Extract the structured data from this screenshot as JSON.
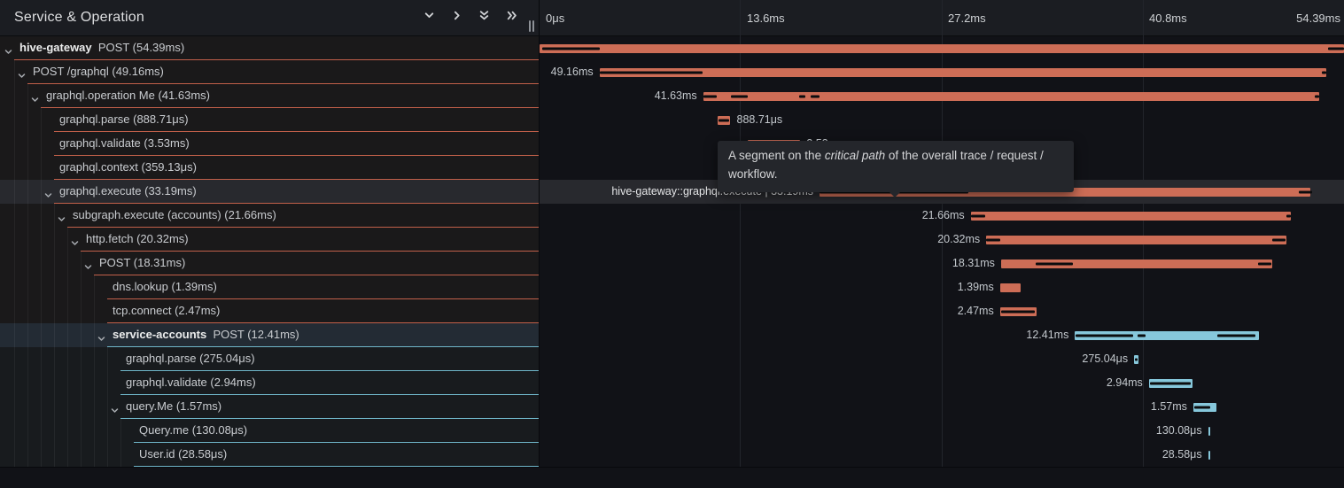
{
  "header": {
    "title": "Service & Operation",
    "buttons": [
      {
        "name": "collapse-one-button",
        "icon": "chevron-down-icon"
      },
      {
        "name": "expand-one-button",
        "icon": "chevron-right-icon"
      },
      {
        "name": "collapse-all-button",
        "icon": "double-chevron-down-icon"
      },
      {
        "name": "expand-all-button",
        "icon": "double-chevron-right-icon"
      }
    ]
  },
  "timeline": {
    "total_ms": 54.39,
    "ticks": [
      {
        "label": "0μs",
        "pos_pct": 0,
        "align": "left"
      },
      {
        "label": "13.6ms",
        "pos_pct": 25,
        "align": "left"
      },
      {
        "label": "27.2ms",
        "pos_pct": 50,
        "align": "left"
      },
      {
        "label": "40.8ms",
        "pos_pct": 75,
        "align": "left"
      },
      {
        "label": "54.39ms",
        "pos_pct": 100,
        "align": "right"
      }
    ]
  },
  "tooltip": {
    "text_before": "A segment on the ",
    "text_italic": "critical path",
    "text_after": " of the overall trace / request / workflow."
  },
  "colors": {
    "salmon_bar": "#cd6d56",
    "salmon_border": "#c2604a",
    "teal_bar": "#86c7db",
    "teal_border": "#6fb6c9",
    "critical_path": "#0b0c0e",
    "row_highlight": "#28292e"
  },
  "spans": [
    {
      "service": "hive-gateway",
      "text": "POST (54.39ms)",
      "depth": 0,
      "chevron": true,
      "theme": "salmon",
      "start_ms": 0,
      "dur_ms": 54.39,
      "bar_label": "",
      "label_side": "none",
      "crit": [
        [
          0.2,
          4.05
        ],
        [
          53.3,
          54.39
        ]
      ],
      "highlight": "none"
    },
    {
      "service": "",
      "text": "POST /graphql (49.16ms)",
      "depth": 1,
      "chevron": true,
      "theme": "salmon",
      "start_ms": 4.05,
      "dur_ms": 49.16,
      "bar_label": "49.16ms",
      "label_side": "left",
      "crit": [
        [
          4.05,
          11.0
        ],
        [
          52.9,
          53.21
        ]
      ],
      "highlight": "none"
    },
    {
      "service": "",
      "text": "graphql.operation Me (41.63ms)",
      "depth": 2,
      "chevron": true,
      "theme": "salmon",
      "start_ms": 11.06,
      "dur_ms": 41.63,
      "bar_label": "41.63ms",
      "label_side": "left",
      "crit": [
        [
          11.06,
          12.0
        ],
        [
          12.95,
          14.05
        ],
        [
          17.55,
          18.0
        ],
        [
          18.35,
          18.93
        ],
        [
          52.4,
          52.69
        ]
      ],
      "highlight": "none"
    },
    {
      "service": "",
      "text": "graphql.parse (888.71μs)",
      "depth": 3,
      "chevron": false,
      "theme": "salmon",
      "start_ms": 12.02,
      "dur_ms": 0.889,
      "bar_label": "888.71μs",
      "label_side": "right",
      "crit": [
        [
          12.1,
          12.83
        ]
      ],
      "highlight": "none"
    },
    {
      "service": "",
      "text": "graphql.validate (3.53ms)",
      "depth": 3,
      "chevron": false,
      "theme": "salmon",
      "start_ms": 14.1,
      "dur_ms": 3.53,
      "bar_label": "3.53ms",
      "label_side": "right",
      "crit": [
        [
          14.16,
          17.55
        ]
      ],
      "highlight": "none"
    },
    {
      "service": "",
      "text": "graphql.context (359.13μs)",
      "depth": 3,
      "chevron": false,
      "theme": "salmon",
      "start_ms": 17.62,
      "dur_ms": 0.359,
      "bar_label": "359.13μs",
      "label_side": "right",
      "crit": [],
      "highlight": "none"
    },
    {
      "service": "",
      "text": "graphql.execute (33.19ms)",
      "depth": 3,
      "chevron": true,
      "theme": "salmon",
      "start_ms": 18.93,
      "dur_ms": 33.19,
      "bar_label": "hive-gateway::graphql.execute | 33.19ms",
      "label_side": "left",
      "label_bright": true,
      "crit": [
        [
          18.95,
          29.0
        ],
        [
          51.35,
          52.25
        ]
      ],
      "highlight": "row"
    },
    {
      "service": "",
      "text": "subgraph.execute (accounts) (21.66ms)",
      "depth": 4,
      "chevron": true,
      "theme": "salmon",
      "start_ms": 29.15,
      "dur_ms": 21.66,
      "bar_label": "21.66ms",
      "label_side": "left",
      "crit": [
        [
          29.15,
          30.15
        ],
        [
          50.5,
          50.8
        ]
      ],
      "highlight": "none"
    },
    {
      "service": "",
      "text": "http.fetch (20.32ms)",
      "depth": 5,
      "chevron": true,
      "theme": "salmon",
      "start_ms": 30.2,
      "dur_ms": 20.32,
      "bar_label": "20.32ms",
      "label_side": "left",
      "crit": [
        [
          30.2,
          31.15
        ],
        [
          49.55,
          50.45
        ]
      ],
      "highlight": "none"
    },
    {
      "service": "",
      "text": "POST (18.31ms)",
      "depth": 6,
      "chevron": true,
      "theme": "salmon",
      "start_ms": 31.2,
      "dur_ms": 18.31,
      "bar_label": "18.31ms",
      "label_side": "left",
      "crit": [
        [
          33.55,
          36.05
        ],
        [
          48.6,
          49.45
        ]
      ],
      "highlight": "none"
    },
    {
      "service": "",
      "text": "dns.lookup (1.39ms)",
      "depth": 7,
      "chevron": false,
      "theme": "salmon",
      "start_ms": 31.13,
      "dur_ms": 1.39,
      "bar_label": "1.39ms",
      "label_side": "left",
      "crit": [],
      "highlight": "none"
    },
    {
      "service": "",
      "text": "tcp.connect (2.47ms)",
      "depth": 7,
      "chevron": false,
      "theme": "salmon",
      "start_ms": 31.13,
      "dur_ms": 2.47,
      "bar_label": "2.47ms",
      "label_side": "left",
      "crit": [
        [
          31.2,
          33.5
        ]
      ],
      "highlight": "none"
    },
    {
      "service": "service-accounts",
      "text": "POST (12.41ms)",
      "depth": 7,
      "chevron": true,
      "theme": "teal",
      "start_ms": 36.2,
      "dur_ms": 12.41,
      "bar_label": "12.41ms",
      "label_side": "left",
      "crit": [
        [
          36.25,
          40.15
        ],
        [
          40.45,
          41.0
        ],
        [
          45.85,
          48.4
        ]
      ],
      "highlight": "left"
    },
    {
      "service": "",
      "text": "graphql.parse (275.04μs)",
      "depth": 8,
      "chevron": false,
      "theme": "teal",
      "start_ms": 40.2,
      "dur_ms": 0.275,
      "bar_label": "275.04μs",
      "label_side": "left",
      "crit": [
        [
          40.24,
          40.4
        ]
      ],
      "highlight": "none"
    },
    {
      "service": "",
      "text": "graphql.validate (2.94ms)",
      "depth": 8,
      "chevron": false,
      "theme": "teal",
      "start_ms": 41.2,
      "dur_ms": 2.94,
      "bar_label": "2.94ms",
      "label_side": "left",
      "crit": [
        [
          41.26,
          44.05
        ]
      ],
      "highlight": "none"
    },
    {
      "service": "",
      "text": "query.Me (1.57ms)",
      "depth": 8,
      "chevron": true,
      "theme": "teal",
      "start_ms": 44.2,
      "dur_ms": 1.57,
      "bar_label": "1.57ms",
      "label_side": "left",
      "crit": [
        [
          44.26,
          45.35
        ]
      ],
      "highlight": "none"
    },
    {
      "service": "",
      "text": "Query.me (130.08μs)",
      "depth": 9,
      "chevron": false,
      "theme": "teal",
      "start_ms": 45.2,
      "dur_ms": 0.13,
      "bar_label": "130.08μs",
      "label_side": "left",
      "crit": [],
      "highlight": "none"
    },
    {
      "service": "",
      "text": "User.id (28.58μs)",
      "depth": 9,
      "chevron": false,
      "theme": "teal",
      "start_ms": 45.2,
      "dur_ms": 0.029,
      "bar_label": "28.58μs",
      "label_side": "left",
      "crit": [],
      "highlight": "none"
    }
  ]
}
